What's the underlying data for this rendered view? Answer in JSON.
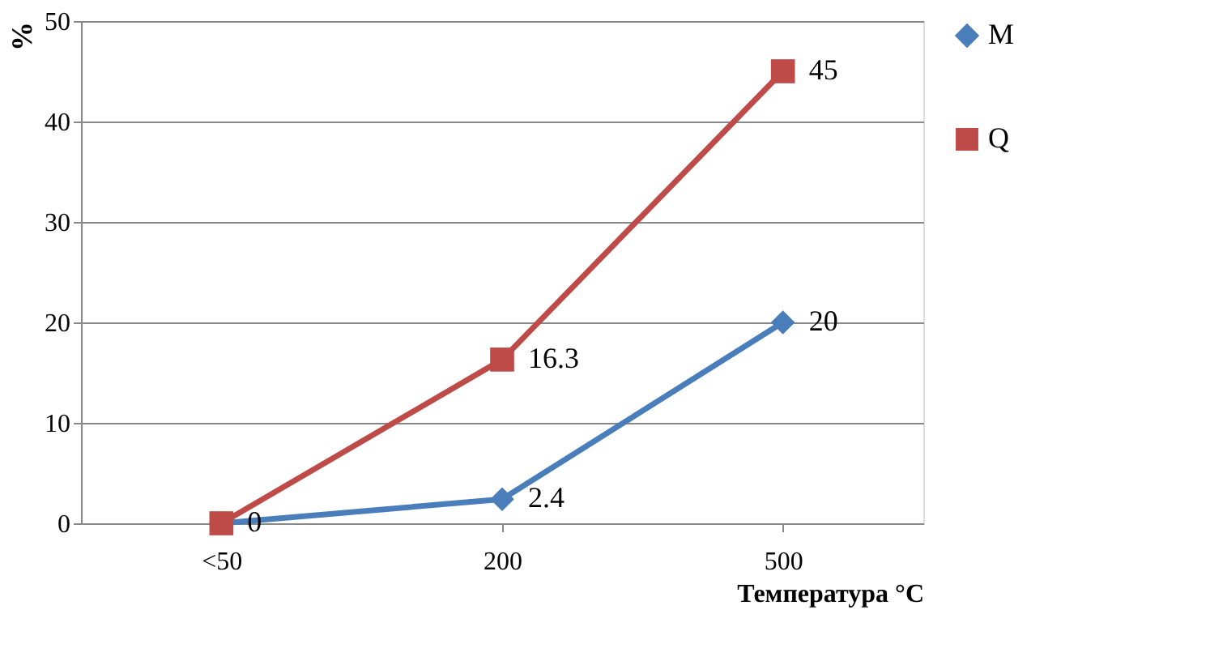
{
  "chart_data": {
    "type": "line",
    "xlabel": "Температура °C",
    "ylabel": "%",
    "categories": [
      "<50",
      "200",
      "500"
    ],
    "series": [
      {
        "name": "M",
        "color": "#4a7ebb",
        "marker": "diamond",
        "values": [
          0,
          2.4,
          20
        ],
        "value_labels": [
          null,
          "2.4",
          "20"
        ]
      },
      {
        "name": "Q",
        "color": "#be4b48",
        "marker": "square",
        "values": [
          0,
          16.3,
          45
        ],
        "value_labels": [
          "0",
          "16.3",
          "45"
        ]
      }
    ],
    "ylim": [
      0,
      50
    ],
    "yticks": [
      0,
      10,
      20,
      30,
      40,
      50
    ],
    "grid": "y",
    "legend": "top right"
  }
}
